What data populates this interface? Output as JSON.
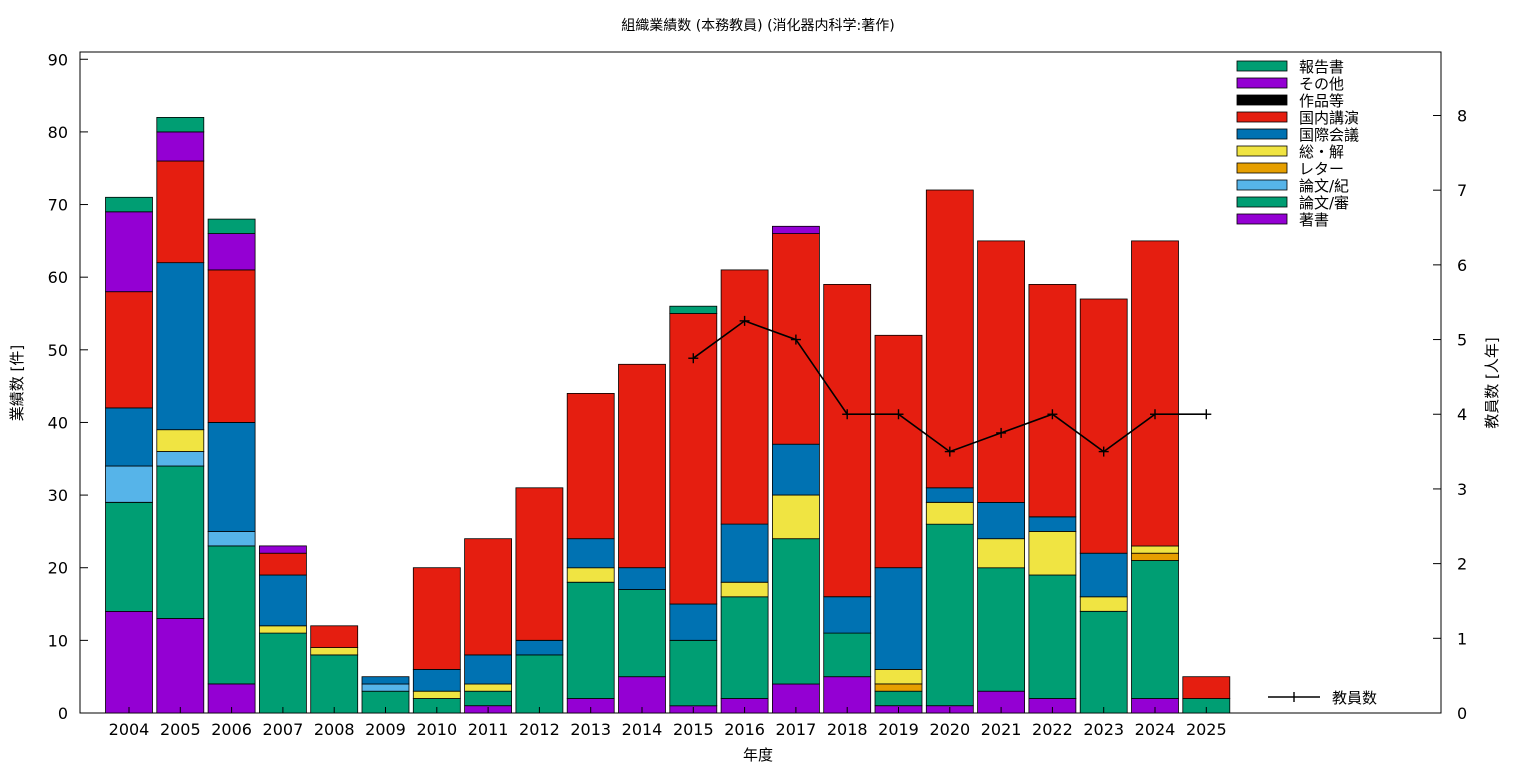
{
  "chart_data": {
    "type": "bar",
    "stacked": true,
    "title": "組織業績数 (本務教員) (消化器内科学:著作)",
    "xlabel": "年度",
    "ylabel": "業績数 [件]",
    "y2label": "教員数 [人年]",
    "ylim": [
      0,
      91
    ],
    "y2lim": [
      0,
      8.85
    ],
    "yticks": [
      0,
      10,
      20,
      30,
      40,
      50,
      60,
      70,
      80,
      90
    ],
    "y2ticks": [
      0,
      1,
      2,
      3,
      4,
      5,
      6,
      7,
      8
    ],
    "grid": false,
    "legend_position": "top-right",
    "categories": [
      "2004",
      "2005",
      "2006",
      "2007",
      "2008",
      "2009",
      "2010",
      "2011",
      "2012",
      "2013",
      "2014",
      "2015",
      "2016",
      "2017",
      "2018",
      "2019",
      "2020",
      "2021",
      "2022",
      "2023",
      "2024",
      "2025"
    ],
    "series": [
      {
        "name": "著書",
        "color": "#9400d3",
        "values": [
          14,
          13,
          4,
          0,
          0,
          0,
          0,
          1,
          0,
          2,
          5,
          1,
          2,
          4,
          5,
          1,
          1,
          3,
          2,
          0,
          2,
          0
        ]
      },
      {
        "name": "論文/審",
        "color": "#009e73",
        "values": [
          15,
          21,
          19,
          11,
          8,
          3,
          2,
          2,
          8,
          16,
          12,
          9,
          14,
          20,
          6,
          2,
          25,
          17,
          17,
          14,
          19,
          2
        ]
      },
      {
        "name": "論文/紀",
        "color": "#56b4e9",
        "values": [
          5,
          2,
          2,
          0,
          0,
          1,
          0,
          0,
          0,
          0,
          0,
          0,
          0,
          0,
          0,
          0,
          0,
          0,
          0,
          0,
          0,
          0
        ]
      },
      {
        "name": "レター",
        "color": "#e69f00",
        "values": [
          0,
          0,
          0,
          0,
          0,
          0,
          0,
          0,
          0,
          0,
          0,
          0,
          0,
          0,
          0,
          1,
          0,
          0,
          0,
          0,
          1,
          0
        ]
      },
      {
        "name": "総・解",
        "color": "#f0e442",
        "values": [
          0,
          3,
          0,
          1,
          1,
          0,
          1,
          1,
          0,
          2,
          0,
          0,
          2,
          6,
          0,
          2,
          3,
          4,
          6,
          2,
          1,
          0
        ]
      },
      {
        "name": "国際会議",
        "color": "#0072b2",
        "values": [
          8,
          23,
          15,
          7,
          0,
          1,
          3,
          4,
          2,
          4,
          3,
          5,
          8,
          7,
          5,
          14,
          2,
          5,
          2,
          6,
          0,
          0
        ]
      },
      {
        "name": "国内講演",
        "color": "#e51e10",
        "values": [
          16,
          14,
          21,
          3,
          3,
          0,
          14,
          16,
          21,
          20,
          28,
          40,
          35,
          29,
          43,
          32,
          41,
          36,
          32,
          35,
          42,
          3
        ]
      },
      {
        "name": "作品等",
        "color": "#000000",
        "values": [
          0,
          0,
          0,
          0,
          0,
          0,
          0,
          0,
          0,
          0,
          0,
          0,
          0,
          0,
          0,
          0,
          0,
          0,
          0,
          0,
          0,
          0
        ]
      },
      {
        "name": "その他",
        "color": "#9400d3",
        "values": [
          11,
          4,
          5,
          1,
          0,
          0,
          0,
          0,
          0,
          0,
          0,
          0,
          0,
          1,
          0,
          0,
          0,
          0,
          0,
          0,
          0,
          0
        ]
      },
      {
        "name": "報告書",
        "color": "#009e73",
        "values": [
          2,
          2,
          2,
          0,
          0,
          0,
          0,
          0,
          0,
          0,
          0,
          1,
          0,
          0,
          0,
          0,
          0,
          0,
          0,
          0,
          0,
          0
        ]
      }
    ],
    "line_series": {
      "name": "教員数",
      "color": "#000000",
      "axis": "y2",
      "x": [
        "2015",
        "2016",
        "2017",
        "2018",
        "2019",
        "2020",
        "2021",
        "2022",
        "2023",
        "2024",
        "2025"
      ],
      "values": [
        4.75,
        5.25,
        5.0,
        4.0,
        4.0,
        3.5,
        3.75,
        4.0,
        3.5,
        4.0,
        4.0
      ]
    }
  }
}
